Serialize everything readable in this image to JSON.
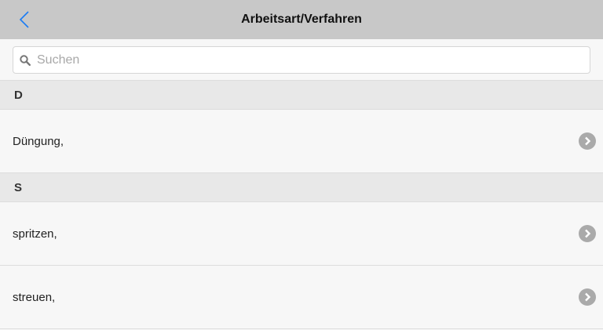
{
  "header": {
    "title": "Arbeitsart/Verfahren",
    "back_icon": "chevron-left-icon",
    "accent": "#1a7cf5"
  },
  "search": {
    "placeholder": "Suchen",
    "value": ""
  },
  "sections": [
    {
      "letter": "D",
      "items": [
        {
          "label": "Düngung,"
        }
      ]
    },
    {
      "letter": "S",
      "items": [
        {
          "label": "spritzen,"
        },
        {
          "label": "streuen,"
        }
      ]
    }
  ]
}
